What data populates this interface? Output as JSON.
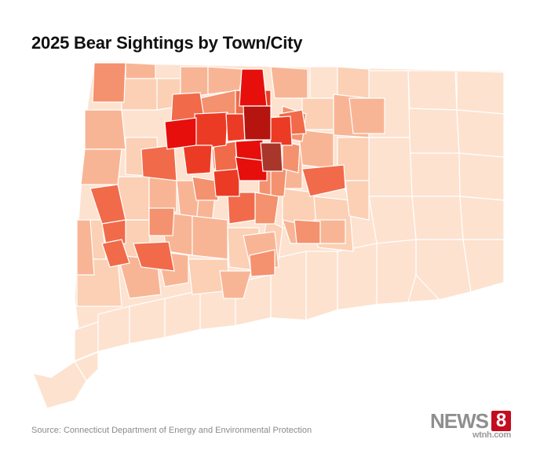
{
  "title": "2025 Bear Sightings by Town/City",
  "source": "Source: Connecticut Department of Energy and Environmental Protection",
  "logo": {
    "news": "NEWS",
    "eight": "8",
    "site": "wtnh.com"
  },
  "colors": {
    "lowest": "#fde2cf",
    "low": "#fbd0b5",
    "medium_low": "#f8b595",
    "medium": "#f4916e",
    "medium_high": "#f16a4a",
    "high": "#ec3b25",
    "very_high": "#e60f0c",
    "highest": "#b5140f",
    "border": "#ffffff",
    "logo_red": "#c40d1e"
  }
}
